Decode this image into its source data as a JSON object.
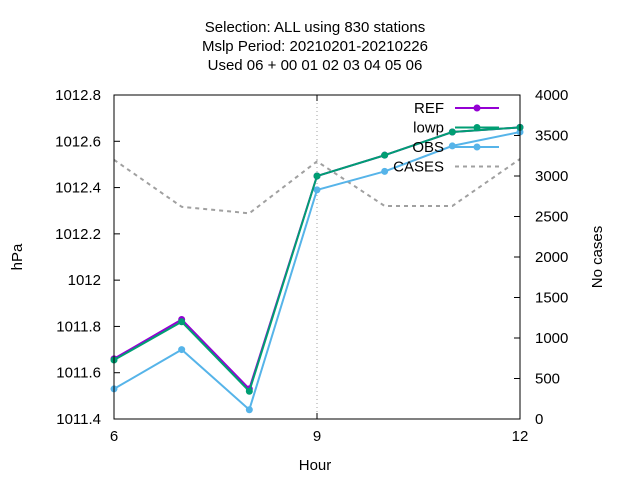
{
  "chart_data": {
    "type": "line",
    "title_lines": [
      "Selection: ALL using   830 stations",
      "Mslp   Period: 20210201-20210226",
      "Used  06  + 00 01 02 03 04 05 06"
    ],
    "xlabel": "Hour",
    "ylabel": "hPa",
    "y2label": "No cases",
    "xlim": [
      6,
      12
    ],
    "ylim": [
      1011.4,
      1012.8
    ],
    "y2lim": [
      0,
      4000
    ],
    "x_ticks": [
      6,
      9,
      12
    ],
    "x_tick_labels": [
      "6",
      "9",
      "12"
    ],
    "y_ticks": [
      1011.4,
      1011.6,
      1011.8,
      1012,
      1012.2,
      1012.4,
      1012.6,
      1012.8
    ],
    "y_tick_labels": [
      "1011.4",
      "1011.6",
      "1011.8",
      "1012",
      "1012.2",
      "1012.4",
      "1012.6",
      "1012.8"
    ],
    "y2_ticks": [
      0,
      500,
      1000,
      1500,
      2000,
      2500,
      3000,
      3500,
      4000
    ],
    "y2_tick_labels": [
      "0",
      "500",
      "1000",
      "1500",
      "2000",
      "2500",
      "3000",
      "3500",
      "4000"
    ],
    "x": [
      6,
      7,
      8,
      9,
      10,
      11,
      12
    ],
    "grid": "x-only, dotted",
    "legend_position": "top-right",
    "series": [
      {
        "name": "REF",
        "axis": "left",
        "color": "#9400d3",
        "style": "line-points",
        "values": [
          1011.66,
          1011.83,
          1011.53,
          1012.45,
          1012.54,
          1012.64,
          1012.66
        ]
      },
      {
        "name": "lowp",
        "axis": "left",
        "color": "#009e73",
        "style": "line-points",
        "values": [
          1011.655,
          1011.82,
          1011.52,
          1012.45,
          1012.54,
          1012.64,
          1012.66
        ]
      },
      {
        "name": "OBS",
        "axis": "left",
        "color": "#56b4e9",
        "style": "line-points",
        "values": [
          1011.53,
          1011.7,
          1011.44,
          1012.39,
          1012.47,
          1012.58,
          1012.64
        ]
      },
      {
        "name": "CASES",
        "axis": "right",
        "color": "#a0a0a0",
        "style": "dashed",
        "values": [
          3200,
          2620,
          2540,
          3180,
          2630,
          2630,
          3210
        ]
      }
    ]
  }
}
